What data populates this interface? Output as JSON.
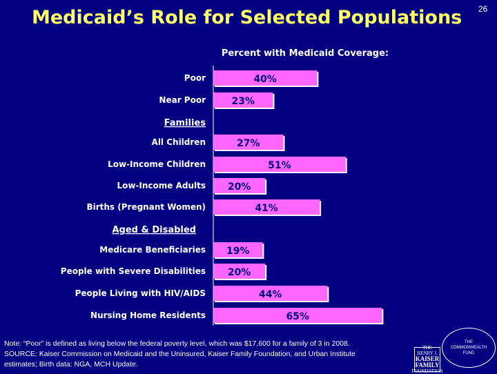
{
  "slide": {
    "title": "Medicaid’s Role for Selected Populations",
    "page_number": "26",
    "note_lines": [
      "Note: “Poor” is defined as living below the federal poverty level, which was $17,600 for a family of 3 in 2008.",
      "SOURCE: Kaiser Commission on Medicaid and the Uninsured, Kaiser Family Foundation, and Urban Institute",
      "estimates; Birth data: NGA, MCH Update."
    ],
    "logos": {
      "kff_lines": [
        "THE HENRY J.",
        "KAISER",
        "FAMILY",
        "FOUNDATION"
      ],
      "cwf_lines": [
        "THE",
        "COMMONWEALTH",
        "FUND"
      ]
    }
  },
  "colors": {
    "background": "#000080",
    "title": "#ffff66",
    "bar": "#ff66ff",
    "bar_shadow": "#ffffff",
    "text": "#ffffff",
    "bar_label": "#000080"
  },
  "chart_data": {
    "type": "bar",
    "orientation": "horizontal",
    "title": "Percent with Medicaid Coverage:",
    "xlim": [
      0,
      100
    ],
    "value_suffix": "%",
    "categories": [
      "Poor",
      "Near Poor",
      "All Children",
      "Low-Income Children",
      "Low-Income Adults",
      "Births (Pregnant Women)",
      "Medicare Beneficiaries",
      "People with Severe Disabilities",
      "People Living with HIV/AIDS",
      "Nursing Home Residents"
    ],
    "values": [
      40,
      23,
      27,
      51,
      20,
      41,
      19,
      20,
      44,
      65
    ],
    "value_labels": [
      "40%",
      "23%",
      "27%",
      "51%",
      "20%",
      "41%",
      "19%",
      "20%",
      "44%",
      "65%"
    ],
    "groups": [
      {
        "label": "",
        "categories": [
          "Poor",
          "Near Poor"
        ]
      },
      {
        "label": "Families",
        "categories": [
          "All Children",
          "Low-Income Children",
          "Low-Income Adults",
          "Births (Pregnant Women)"
        ]
      },
      {
        "label": "Aged & Disabled",
        "categories": [
          "Medicare Beneficiaries",
          "People with Severe Disabilities",
          "People Living with HIV/AIDS",
          "Nursing Home Residents"
        ]
      }
    ]
  }
}
